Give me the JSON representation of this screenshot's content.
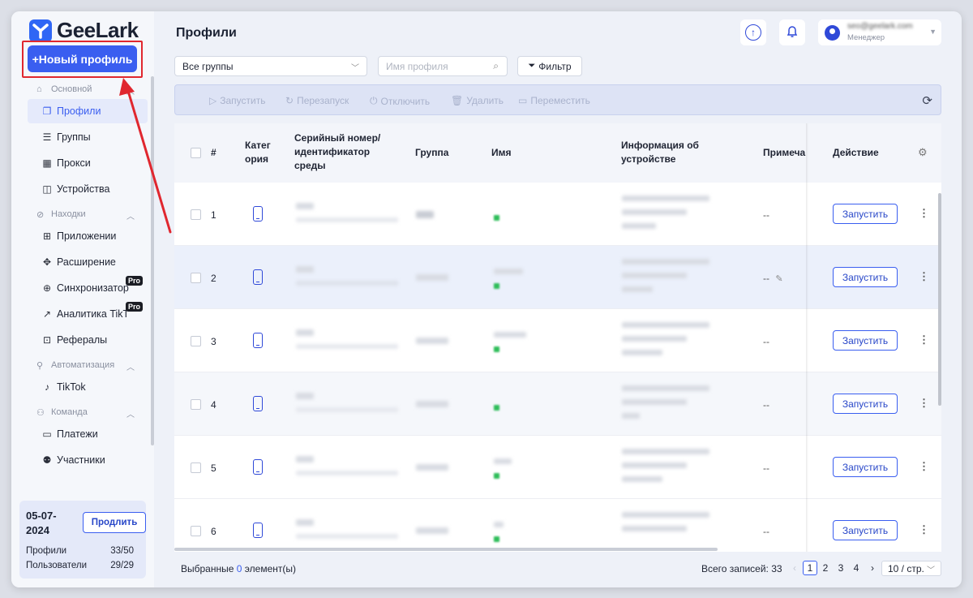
{
  "app": {
    "logo_text": "GeeLark",
    "new_profile_label": "+Новый профиль"
  },
  "sidebar": {
    "groups": [
      {
        "label": "Основной",
        "icon": "home-icon"
      },
      {
        "label": "Находки",
        "icon": "compass-icon"
      },
      {
        "label": "Автоматизация",
        "icon": "flow-icon"
      },
      {
        "label": "Команда",
        "icon": "team-icon"
      }
    ],
    "items": [
      {
        "label": "Профили",
        "icon": "profiles-icon",
        "active": true
      },
      {
        "label": "Группы",
        "icon": "list-icon"
      },
      {
        "label": "Прокси",
        "icon": "proxy-icon"
      },
      {
        "label": "Устройства",
        "icon": "devices-icon"
      },
      {
        "label": "Приложении",
        "icon": "apps-icon"
      },
      {
        "label": "Расширение",
        "icon": "puzzle-icon"
      },
      {
        "label": "Синхронизатор",
        "icon": "sync-icon",
        "badge": "Pro"
      },
      {
        "label": "Аналитика TikTok",
        "icon": "chart-icon",
        "badge": "Pro"
      },
      {
        "label": "Рефералы",
        "icon": "gift-icon"
      },
      {
        "label": "TikTok",
        "icon": "tiktok-icon"
      },
      {
        "label": "Платежи",
        "icon": "payment-icon"
      },
      {
        "label": "Участники",
        "icon": "members-icon"
      }
    ]
  },
  "plan": {
    "date": "05-07-2024",
    "renew_label": "Продлить",
    "profiles_label": "Профили",
    "profiles_value": "33/50",
    "users_label": "Пользователи",
    "users_value": "29/29"
  },
  "header": {
    "title": "Профили",
    "user_email": "seo@geelark.com",
    "user_role": "Менеджер"
  },
  "filters": {
    "group_select": "Все группы",
    "name_placeholder": "Имя профиля",
    "filter_label": "Фильтр"
  },
  "actions": {
    "start": "Запустить",
    "restart": "Перезапуск",
    "stop": "Отключить",
    "delete": "Удалить",
    "move": "Переместить"
  },
  "table": {
    "columns": {
      "num": "#",
      "category": "Категория",
      "serial_line1": "Серийный номер/",
      "serial_line2": "идентификатор",
      "serial_line3": "среды",
      "group": "Группа",
      "name": "Имя",
      "device_line1": "Информация об",
      "device_line2": "устройстве",
      "note": "Примечание",
      "action": "Действие"
    },
    "rows": [
      {
        "num": "1",
        "note": "--",
        "action": "Запустить"
      },
      {
        "num": "2",
        "note": "--",
        "action": "Запустить"
      },
      {
        "num": "3",
        "note": "--",
        "action": "Запустить"
      },
      {
        "num": "4",
        "note": "--",
        "action": "Запустить"
      },
      {
        "num": "5",
        "note": "--",
        "action": "Запустить"
      },
      {
        "num": "6",
        "note": "--",
        "action": "Запустить"
      }
    ]
  },
  "footer": {
    "selected_prefix": "Выбранные",
    "selected_count": "0",
    "selected_suffix": "элемент(ы)",
    "total": "Всего записей: 33",
    "pages": [
      "1",
      "2",
      "3",
      "4"
    ],
    "current_page": "1",
    "page_size": "10 / стр."
  },
  "colors": {
    "accent": "#3a5ef0",
    "highlight": "#e0272f",
    "status": "#2fbd5a"
  }
}
